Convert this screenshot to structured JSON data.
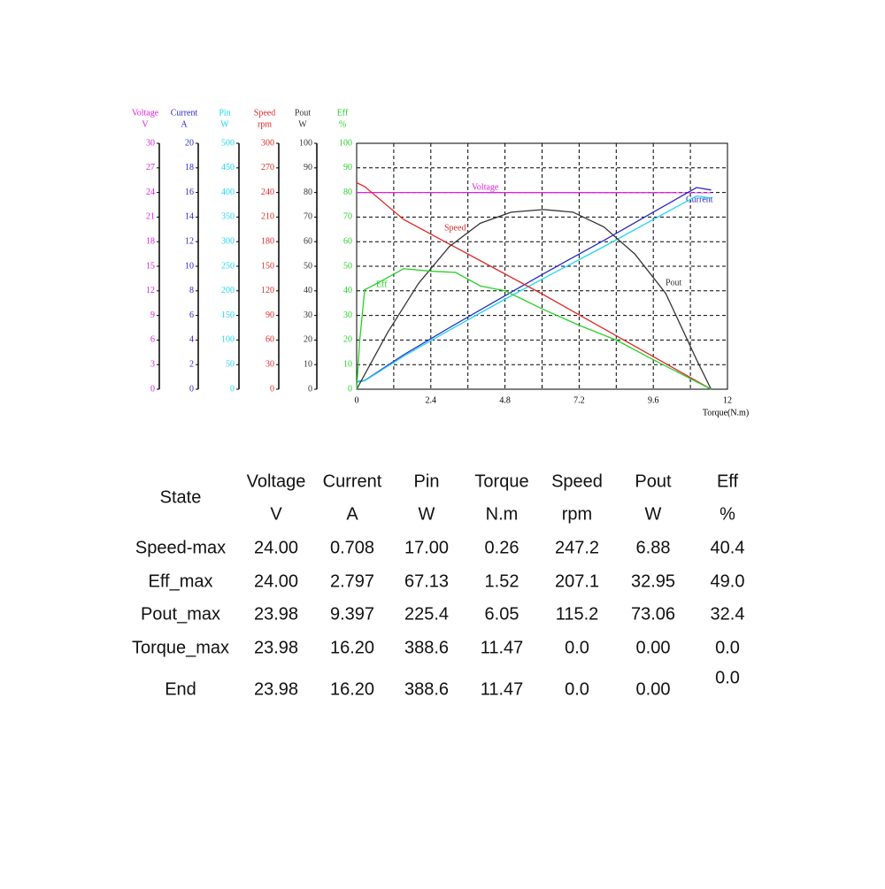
{
  "chart_data": {
    "type": "line",
    "xlabel": "Torque(N.m)",
    "xlim": [
      0,
      12
    ],
    "xticks": [
      0,
      2.4,
      4.8,
      7.2,
      9.6,
      12
    ],
    "xminorticks": [
      1.2,
      3.6,
      6,
      8.4,
      10.8
    ],
    "grid": true,
    "series": [
      {
        "name": "Voltage",
        "unit": "V",
        "color": "#e020e0",
        "ylim": [
          0,
          30
        ],
        "yticks": [
          0,
          3,
          6,
          9,
          12,
          15,
          18,
          21,
          24,
          27,
          30
        ],
        "x": [
          0,
          11.47
        ],
        "values": [
          24.0,
          23.98
        ]
      },
      {
        "name": "Current",
        "unit": "A",
        "color": "#2828c8",
        "ylim": [
          0,
          20
        ],
        "yticks": [
          0,
          2,
          4,
          6,
          8,
          10,
          12,
          14,
          16,
          18,
          20
        ],
        "x": [
          0,
          0.26,
          1.52,
          3,
          4.8,
          6.05,
          8,
          9.6,
          11,
          11.47
        ],
        "values": [
          0.6,
          0.708,
          2.797,
          5.0,
          7.6,
          9.397,
          12.1,
          14.4,
          16.4,
          16.2
        ]
      },
      {
        "name": "Pin",
        "unit": "W",
        "color": "#20d8f0",
        "ylim": [
          0,
          500
        ],
        "yticks": [
          0,
          50,
          100,
          150,
          200,
          250,
          300,
          350,
          400,
          450,
          500
        ],
        "x": [
          0,
          0.26,
          1.52,
          3,
          4.8,
          6.05,
          8,
          9.6,
          11,
          11.47
        ],
        "values": [
          14,
          17.0,
          67.13,
          120,
          183,
          225.4,
          290,
          345,
          393,
          388.6
        ]
      },
      {
        "name": "Speed",
        "unit": "rpm",
        "color": "#e02828",
        "ylim": [
          0,
          300
        ],
        "yticks": [
          0,
          30,
          60,
          90,
          120,
          150,
          180,
          210,
          240,
          270,
          300
        ],
        "x": [
          0,
          0.26,
          1.52,
          6.05,
          11.47
        ],
        "values": [
          252,
          247.2,
          207.1,
          115.2,
          0.0
        ]
      },
      {
        "name": "Pout",
        "unit": "W",
        "color": "#333333",
        "ylim": [
          0,
          100
        ],
        "yticks": [
          0,
          10,
          20,
          30,
          40,
          50,
          60,
          70,
          80,
          90,
          100
        ],
        "x": [
          0,
          1,
          2,
          3,
          4,
          5,
          6.05,
          7,
          8,
          9,
          10,
          11,
          11.47
        ],
        "values": [
          0,
          23,
          43,
          58,
          67.5,
          72,
          73.06,
          72,
          66,
          55,
          39,
          12,
          0.0
        ]
      },
      {
        "name": "Eff",
        "unit": "%",
        "color": "#28d028",
        "ylim": [
          0,
          100
        ],
        "yticks": [
          0,
          10,
          20,
          30,
          40,
          50,
          60,
          70,
          80,
          90,
          100
        ],
        "x": [
          0,
          0.1,
          0.26,
          0.8,
          1.52,
          2.4,
          3.2,
          4,
          4.8,
          6.05,
          7.2,
          8.4,
          9.6,
          11.47
        ],
        "values": [
          0,
          20,
          40.4,
          44,
          49.0,
          48,
          47.5,
          42,
          40,
          32.4,
          26,
          20,
          12,
          0.0
        ]
      }
    ]
  },
  "table": {
    "state_header": "State",
    "columns": [
      "Voltage",
      "Current",
      "Pin",
      "Torque",
      "Speed",
      "Pout",
      "Eff"
    ],
    "units": [
      "V",
      "A",
      "W",
      "N.m",
      "rpm",
      "W",
      "%"
    ],
    "rows": [
      [
        "Speed-max",
        "24.00",
        "0.708",
        "17.00",
        "0.26",
        "247.2",
        "6.88",
        "40.4"
      ],
      [
        "Eff_max",
        "24.00",
        "2.797",
        "67.13",
        "1.52",
        "207.1",
        "32.95",
        "49.0"
      ],
      [
        "Pout_max",
        "23.98",
        "9.397",
        "225.4",
        "6.05",
        "115.2",
        "73.06",
        "32.4"
      ],
      [
        "Torque_max",
        "23.98",
        "16.20",
        "388.6",
        "11.47",
        "0.0",
        "0.00",
        "0.0"
      ],
      [
        "End",
        "23.98",
        "16.20",
        "388.6",
        "11.47",
        "0.0",
        "0.00",
        "0.0"
      ]
    ]
  }
}
